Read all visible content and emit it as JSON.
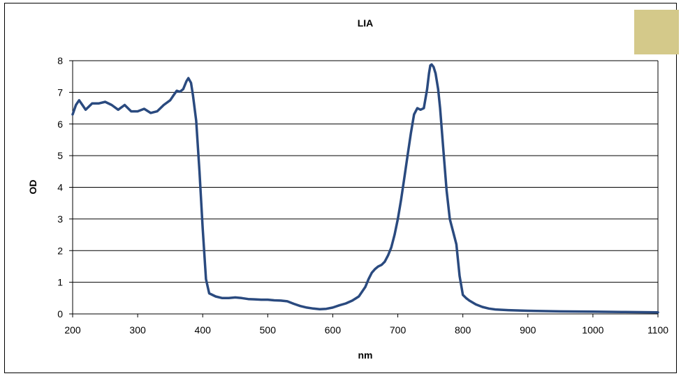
{
  "chart_data": {
    "type": "line",
    "title": "LIA",
    "xlabel": "nm",
    "ylabel": "OD",
    "xlim": [
      200,
      1100
    ],
    "ylim": [
      0,
      8
    ],
    "xticks": [
      200,
      300,
      400,
      500,
      600,
      700,
      800,
      900,
      1000,
      1100
    ],
    "yticks": [
      0,
      1,
      2,
      3,
      4,
      5,
      6,
      7,
      8
    ],
    "grid": "horizontal",
    "legend": "none",
    "line_color": "#2a4a7f",
    "swatch_color": "#d4c98a",
    "series": [
      {
        "x": [
          200,
          205,
          210,
          215,
          220,
          230,
          240,
          250,
          260,
          270,
          280,
          290,
          300,
          310,
          320,
          330,
          340,
          350,
          355,
          360,
          365,
          370,
          375,
          378,
          382,
          385,
          390,
          395,
          400,
          405,
          410,
          420,
          430,
          440,
          450,
          460,
          470,
          480,
          490,
          500,
          510,
          520,
          530,
          540,
          550,
          560,
          570,
          580,
          590,
          600,
          610,
          620,
          630,
          640,
          650,
          655,
          660,
          665,
          670,
          675,
          680,
          685,
          690,
          695,
          700,
          705,
          710,
          715,
          720,
          725,
          730,
          735,
          740,
          745,
          748,
          750,
          752,
          755,
          758,
          762,
          765,
          770,
          775,
          780,
          785,
          790,
          795,
          800,
          805,
          810,
          820,
          830,
          840,
          850,
          870,
          900,
          950,
          1000,
          1050,
          1100
        ],
        "y": [
          6.3,
          6.6,
          6.75,
          6.6,
          6.45,
          6.65,
          6.65,
          6.7,
          6.6,
          6.45,
          6.6,
          6.4,
          6.4,
          6.48,
          6.35,
          6.4,
          6.6,
          6.75,
          6.9,
          7.05,
          7.02,
          7.1,
          7.35,
          7.45,
          7.3,
          6.9,
          6.1,
          4.5,
          2.7,
          1.1,
          0.65,
          0.55,
          0.5,
          0.5,
          0.52,
          0.5,
          0.47,
          0.46,
          0.45,
          0.45,
          0.43,
          0.42,
          0.4,
          0.32,
          0.25,
          0.2,
          0.17,
          0.15,
          0.16,
          0.2,
          0.27,
          0.33,
          0.42,
          0.55,
          0.85,
          1.1,
          1.3,
          1.42,
          1.5,
          1.55,
          1.65,
          1.85,
          2.1,
          2.5,
          3.0,
          3.6,
          4.3,
          5.0,
          5.7,
          6.3,
          6.5,
          6.45,
          6.5,
          7.1,
          7.6,
          7.85,
          7.88,
          7.8,
          7.6,
          7.1,
          6.5,
          5.2,
          3.9,
          3.0,
          2.6,
          2.2,
          1.2,
          0.6,
          0.5,
          0.42,
          0.3,
          0.22,
          0.17,
          0.14,
          0.12,
          0.1,
          0.08,
          0.07,
          0.06,
          0.05
        ]
      }
    ]
  }
}
